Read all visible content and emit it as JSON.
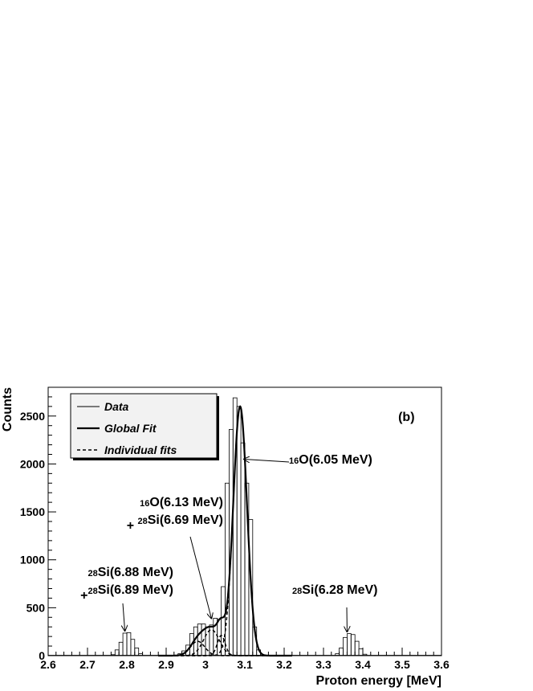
{
  "chart_data": {
    "type": "histogram-with-fits",
    "xlabel": "Proton energy [MeV]",
    "ylabel": "Counts",
    "xlim": [
      2.6,
      3.6
    ],
    "ylim": [
      0,
      2800
    ],
    "xticks": [
      2.6,
      2.7,
      2.8,
      2.9,
      3.0,
      3.1,
      3.2,
      3.3,
      3.4,
      3.5,
      3.6
    ],
    "xtick_labels": [
      "2.6",
      "2.7",
      "2.8",
      "2.9",
      "3",
      "3.1",
      "3.2",
      "3.3",
      "3.4",
      "3.5",
      "3.6"
    ],
    "yticks": [
      0,
      500,
      1000,
      1500,
      2000,
      2500
    ],
    "ytick_labels": [
      "0",
      "500",
      "1000",
      "1500",
      "2000",
      "2500"
    ],
    "grid": false,
    "panel_label": "(b)",
    "legend": {
      "placement": "top-left",
      "entries": [
        {
          "label": "Data",
          "style": "thin-solid"
        },
        {
          "label": "Global Fit",
          "style": "thick-solid"
        },
        {
          "label": "Individual fits",
          "style": "dashed"
        }
      ]
    },
    "histogram": {
      "name": "Data",
      "bin_width": 0.01,
      "bins": [
        [
          2.76,
          10
        ],
        [
          2.77,
          60
        ],
        [
          2.78,
          140
        ],
        [
          2.79,
          235
        ],
        [
          2.8,
          240
        ],
        [
          2.81,
          170
        ],
        [
          2.82,
          80
        ],
        [
          2.83,
          20
        ],
        [
          2.93,
          20
        ],
        [
          2.94,
          50
        ],
        [
          2.95,
          110
        ],
        [
          2.96,
          230
        ],
        [
          2.97,
          300
        ],
        [
          2.98,
          330
        ],
        [
          2.99,
          330
        ],
        [
          3.0,
          300
        ],
        [
          3.01,
          320
        ],
        [
          3.02,
          390
        ],
        [
          3.03,
          380
        ],
        [
          3.04,
          720
        ],
        [
          3.05,
          1800
        ],
        [
          3.06,
          2360
        ],
        [
          3.07,
          2690
        ],
        [
          3.08,
          2600
        ],
        [
          3.09,
          2220
        ],
        [
          3.1,
          1800
        ],
        [
          3.11,
          1420
        ],
        [
          3.12,
          300
        ],
        [
          3.13,
          60
        ],
        [
          3.33,
          20
        ],
        [
          3.34,
          80
        ],
        [
          3.35,
          190
        ],
        [
          3.36,
          230
        ],
        [
          3.37,
          220
        ],
        [
          3.38,
          150
        ],
        [
          3.39,
          70
        ],
        [
          3.4,
          15
        ]
      ]
    },
    "fits": [
      {
        "name": "Global Fit",
        "style": "solid",
        "components": [
          {
            "amp": 2600,
            "mu": 3.088,
            "sigma": 0.0175
          },
          {
            "amp": 270,
            "mu": 3.015,
            "sigma": 0.02
          },
          {
            "amp": 150,
            "mu": 2.98,
            "sigma": 0.018
          },
          {
            "amp": 210,
            "mu": 3.04,
            "sigma": 0.01
          }
        ]
      },
      {
        "name": "Individual fits",
        "style": "dashed",
        "peaks": [
          {
            "amp": 2600,
            "mu": 3.088,
            "sigma": 0.0175
          },
          {
            "amp": 270,
            "mu": 3.015,
            "sigma": 0.02
          },
          {
            "amp": 150,
            "mu": 2.98,
            "sigma": 0.018
          },
          {
            "amp": 210,
            "mu": 3.04,
            "sigma": 0.01
          }
        ]
      }
    ],
    "annotations": [
      {
        "id": "o16-605",
        "lines": [
          [
            "16",
            "O(6.05 MeV)"
          ]
        ],
        "arrow_to": [
          3.098,
          2050
        ]
      },
      {
        "id": "o16-613",
        "lines": [
          [
            "16",
            "O(6.13 MeV)"
          ],
          [
            "+ ",
            "28",
            "Si(6.69 MeV)"
          ]
        ],
        "arrow_to": [
          3.015,
          390
        ]
      },
      {
        "id": "si28-688",
        "lines": [
          [
            "28",
            "Si(6.88 MeV)"
          ],
          [
            "+",
            "28",
            "Si(6.89 MeV)"
          ]
        ],
        "arrow_to": [
          2.795,
          260
        ]
      },
      {
        "id": "si28-628",
        "lines": [
          [
            "28",
            "Si(6.28 MeV)"
          ]
        ],
        "arrow_to": [
          3.36,
          250
        ]
      }
    ]
  }
}
